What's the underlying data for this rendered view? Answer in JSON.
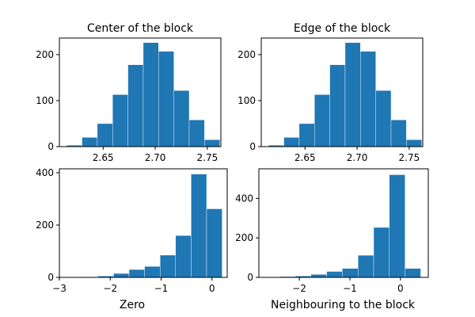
{
  "colors": {
    "bar": "#1f77b4",
    "axis": "#000000",
    "background": "#ffffff",
    "bar_edge": "#ffffff"
  },
  "chart_data": [
    {
      "type": "bar",
      "title": "Center of the block",
      "xlabel": "",
      "ylabel": "",
      "xlim": [
        2.608,
        2.763
      ],
      "ylim": [
        0,
        236
      ],
      "xticks": [
        2.65,
        2.7,
        2.75
      ],
      "xtick_labels": [
        "2.65",
        "2.70",
        "2.75"
      ],
      "yticks": [
        0,
        100,
        200
      ],
      "ytick_labels": [
        "0",
        "100",
        "200"
      ],
      "grid": false,
      "bin_edges": [
        2.615,
        2.6297,
        2.6444,
        2.6591,
        2.6738,
        2.6885,
        2.7032,
        2.7179,
        2.7326,
        2.7473,
        2.762
      ],
      "values": [
        3,
        20,
        50,
        113,
        178,
        226,
        207,
        122,
        58,
        15
      ]
    },
    {
      "type": "bar",
      "title": "Edge of the block",
      "xlabel": "",
      "ylabel": "",
      "xlim": [
        2.608,
        2.763
      ],
      "ylim": [
        0,
        236
      ],
      "xticks": [
        2.65,
        2.7,
        2.75
      ],
      "xtick_labels": [
        "2.65",
        "2.70",
        "2.75"
      ],
      "yticks": [
        0,
        100,
        200
      ],
      "ytick_labels": [
        "0",
        "100",
        "200"
      ],
      "grid": false,
      "bin_edges": [
        2.615,
        2.6297,
        2.6444,
        2.6591,
        2.6738,
        2.6885,
        2.7032,
        2.7179,
        2.7326,
        2.7473,
        2.762
      ],
      "values": [
        3,
        20,
        50,
        113,
        178,
        226,
        207,
        122,
        58,
        15
      ]
    },
    {
      "type": "bar",
      "title": "",
      "xlabel": "Zero",
      "ylabel": "",
      "xlim": [
        -3.0,
        0.3
      ],
      "ylim": [
        0,
        415
      ],
      "xticks": [
        -3,
        -2,
        -1,
        0
      ],
      "xtick_labels": [
        "−3",
        "−2",
        "−1",
        "0"
      ],
      "yticks": [
        0,
        200,
        400
      ],
      "ytick_labels": [
        "0",
        "200",
        "400"
      ],
      "grid": false,
      "bin_edges": [
        -2.85,
        -2.545,
        -2.24,
        -1.935,
        -1.63,
        -1.325,
        -1.02,
        -0.715,
        -0.41,
        -0.105,
        0.2
      ],
      "values": [
        1,
        2,
        5,
        15,
        30,
        42,
        85,
        160,
        395,
        262
      ]
    },
    {
      "type": "bar",
      "title": "",
      "xlabel": "Neighbouring to the block",
      "ylabel": "",
      "xlim": [
        -2.8,
        0.55
      ],
      "ylim": [
        0,
        550
      ],
      "xticks": [
        -2,
        -1,
        0
      ],
      "xtick_labels": [
        "−2",
        "−1",
        "0"
      ],
      "yticks": [
        0,
        200,
        400
      ],
      "ytick_labels": [
        "0",
        "200",
        "400"
      ],
      "grid": false,
      "bin_edges": [
        -2.7,
        -2.39,
        -2.08,
        -1.77,
        -1.46,
        -1.15,
        -0.84,
        -0.53,
        -0.22,
        0.09,
        0.4
      ],
      "values": [
        2,
        4,
        7,
        15,
        30,
        45,
        112,
        253,
        520,
        45
      ]
    }
  ]
}
